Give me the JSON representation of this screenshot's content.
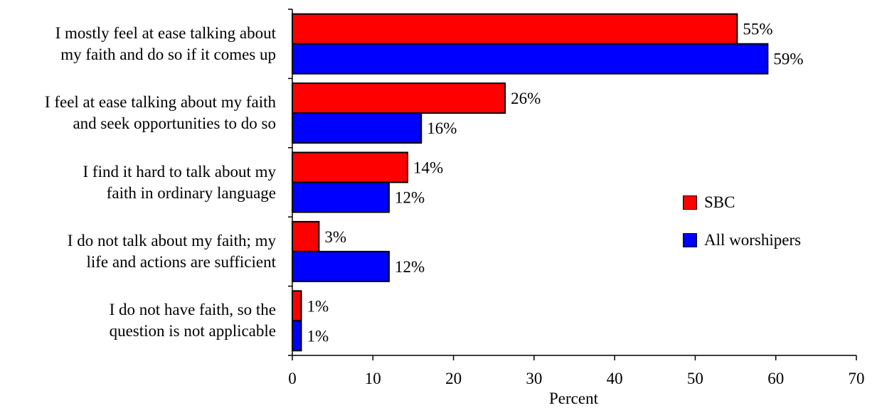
{
  "chart_data": {
    "type": "bar",
    "orientation": "horizontal",
    "categories": [
      "I mostly feel at ease talking about\nmy faith and do so if it comes up",
      "I feel at ease talking about my faith\nand seek opportunities to do so",
      "I find it hard to talk about my\nfaith in ordinary language",
      "I do not talk about my faith; my\nlife and actions are sufficient",
      "I do not have faith, so the\nquestion is not applicable"
    ],
    "series": [
      {
        "name": "SBC",
        "color": "#ff0000",
        "values": [
          55,
          26,
          14,
          3,
          1
        ],
        "labels": [
          "55%",
          "26%",
          "14%",
          "3%",
          "1%"
        ],
        "plot_values": [
          55.2,
          26.4,
          14.3,
          3.3,
          1.1
        ]
      },
      {
        "name": "All worshipers",
        "color": "#0000ff",
        "values": [
          59,
          16,
          12,
          12,
          1
        ],
        "labels": [
          "59%",
          "16%",
          "12%",
          "12%",
          "1%"
        ],
        "plot_values": [
          59.0,
          16.0,
          12.0,
          12.0,
          1.1
        ]
      }
    ],
    "xlabel": "Percent",
    "ylabel": "",
    "xlim": [
      0,
      70
    ],
    "xticks": [
      0,
      10,
      20,
      30,
      40,
      50,
      60,
      70
    ],
    "grid": false,
    "legend": "right"
  }
}
